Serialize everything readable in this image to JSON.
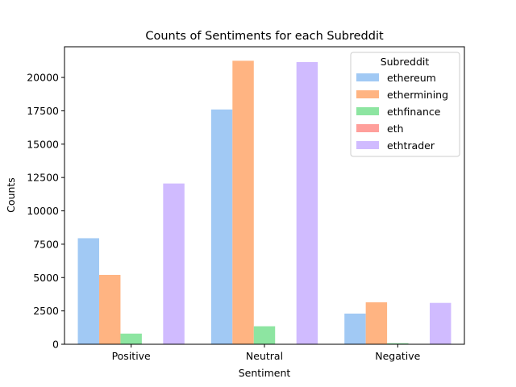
{
  "chart_data": {
    "type": "bar",
    "title": "Counts of Sentiments for each Subreddit",
    "xlabel": "Sentiment",
    "ylabel": "Counts",
    "categories": [
      "Positive",
      "Neutral",
      "Negative"
    ],
    "ylim": [
      0,
      22300
    ],
    "yticks": [
      0,
      2500,
      5000,
      7500,
      10000,
      12500,
      15000,
      17500,
      20000
    ],
    "legend_title": "Subreddit",
    "legend_position": "top-right",
    "grid": false,
    "series": [
      {
        "name": "ethereum",
        "color": "#a1c9f4",
        "values": [
          7950,
          17600,
          2300
        ]
      },
      {
        "name": "ethermining",
        "color": "#ffb482",
        "values": [
          5200,
          21250,
          3150
        ]
      },
      {
        "name": "ethfinance",
        "color": "#8de5a1",
        "values": [
          800,
          1350,
          80
        ]
      },
      {
        "name": "eth",
        "color": "#ff9f9b",
        "values": [
          0,
          0,
          0
        ]
      },
      {
        "name": "ethtrader",
        "color": "#d0bbff",
        "values": [
          12050,
          21150,
          3100
        ]
      }
    ]
  }
}
